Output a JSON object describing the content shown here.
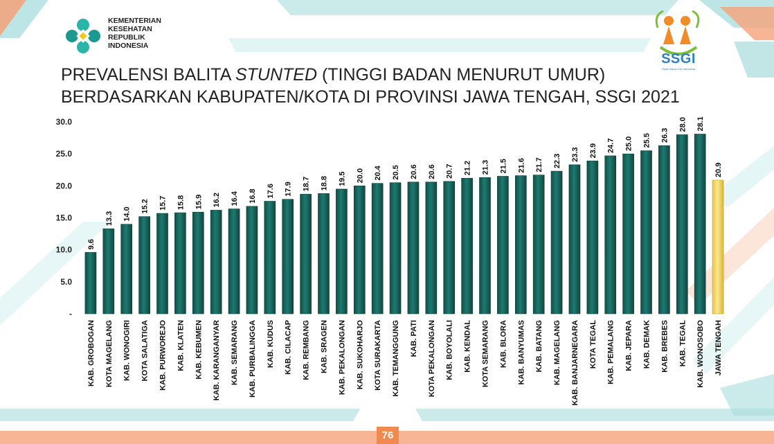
{
  "logo": {
    "org_lines": [
      "KEMENTERIAN",
      "KESEHATAN",
      "REPUBLIK",
      "INDONESIA"
    ]
  },
  "ssgi_logo": {
    "text": "SSGI",
    "subtitle": "Studi Status Gizi Indonesia"
  },
  "title": {
    "line1_a": "PREVALENSI BALITA ",
    "line1_em": "STUNTED",
    "line1_b": "  (TINGGI BADAN MENURUT UMUR)",
    "line2": "BERDASARKAN KABUPATEN/KOTA  DI PROVINSI JAWA TENGAH, SSGI 2021"
  },
  "page_number": "76",
  "colors": {
    "bar": "#1a6b63",
    "highlight_bar": "#f3dc6a",
    "accent_teal": "#a8dcdc",
    "accent_orange": "#f5a27a"
  },
  "chart_data": {
    "type": "bar",
    "categories": [
      "KAB. GROBOGAN",
      "KOTA MAGELANG",
      "KAB. WONOGIRI",
      "KOTA SALATIGA",
      "KAB. PURWOREJO",
      "KAB. KLATEN",
      "KAB. KEBUMEN",
      "KAB. KARANGANYAR",
      "KAB. SEMARANG",
      "KAB. PURBALINGGA",
      "KAB. KUDUS",
      "KAB. CILACAP",
      "KAB. REMBANG",
      "KAB. SRAGEN",
      "KAB. PEKALONGAN",
      "KAB. SUKOHARJO",
      "KOTA SURAKARTA",
      "KAB. TEMANGGUNG",
      "KAB. PATI",
      "KOTA PEKALONGAN",
      "KAB. BOYOLALI",
      "KAB. KENDAL",
      "KOTA SEMARANG",
      "KAB. BLORA",
      "KAB. BANYUMAS",
      "KAB. BATANG",
      "KAB. MAGELANG",
      "KAB. BANJARNEGARA",
      "KOTA TEGAL",
      "KAB. PEMALANG",
      "KAB. JEPARA",
      "KAB. DEMAK",
      "KAB. BREBES",
      "KAB. TEGAL",
      "KAB. WONOSOBO",
      "JAWA TENGAH"
    ],
    "values": [
      9.6,
      13.3,
      14.0,
      15.2,
      15.7,
      15.8,
      15.9,
      16.2,
      16.4,
      16.8,
      17.6,
      17.9,
      18.7,
      18.8,
      19.5,
      20.0,
      20.4,
      20.5,
      20.6,
      20.6,
      20.7,
      21.2,
      21.3,
      21.5,
      21.6,
      21.7,
      22.3,
      23.3,
      23.9,
      24.7,
      25.0,
      25.5,
      26.3,
      28.0,
      28.1,
      20.9
    ],
    "value_labels": [
      "9.6",
      "13.3",
      "14.0",
      "15.2",
      "15.7",
      "15.8",
      "15.9",
      "16.2",
      "16.4",
      "16.8",
      "17.6",
      "17.9",
      "18.7",
      "18.8",
      "19.5",
      "20.0",
      "20.4",
      "20.5",
      "20.6",
      "20.6",
      "20.7",
      "21.2",
      "21.3",
      "21.5",
      "21.6",
      "21.7",
      "22.3",
      "23.3",
      "23.9",
      "24.7",
      "25.0",
      "25.5",
      "26.3",
      "28.0",
      "28.1",
      "20.9"
    ],
    "highlight_index": 35,
    "ylim": [
      0,
      30
    ],
    "yticks": [
      0,
      5,
      10,
      15,
      20,
      25,
      30
    ],
    "ytick_labels": [
      "-",
      "5.0",
      "10.0",
      "15.0",
      "20.0",
      "25.0",
      "30.0"
    ],
    "grid": false,
    "legend": "none"
  }
}
